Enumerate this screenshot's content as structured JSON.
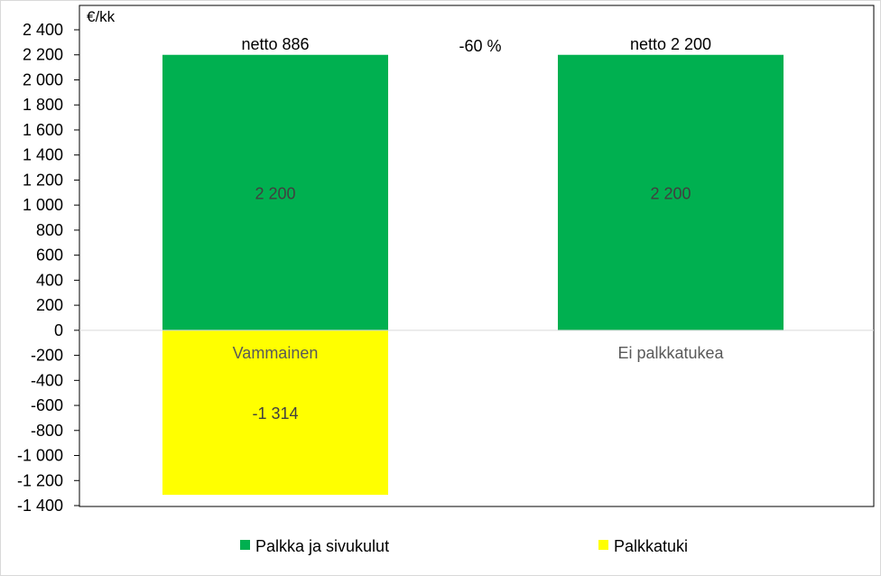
{
  "chart_data": {
    "type": "bar",
    "stacked": true,
    "unit_label": "€/kk",
    "categories": [
      "Vammainen",
      "Ei palkkatukea"
    ],
    "series": [
      {
        "name": "Palkka ja sivukulut",
        "values": [
          2200,
          2200
        ],
        "color": "#00b050",
        "value_labels": [
          "2 200",
          "2 200"
        ]
      },
      {
        "name": "Palkkatuki",
        "values": [
          -1314,
          0
        ],
        "color": "#ffff00",
        "value_labels": [
          "-1 314",
          ""
        ]
      }
    ],
    "top_labels": [
      "netto 886",
      "netto 2 200"
    ],
    "annotation": "-60 %",
    "ylim": [
      -1400,
      2400
    ],
    "yticks": [
      2400,
      2200,
      2000,
      1800,
      1600,
      1400,
      1200,
      1000,
      800,
      600,
      400,
      200,
      0,
      -200,
      -400,
      -600,
      -800,
      -1000,
      -1200,
      -1400
    ],
    "ytick_labels": [
      "2 400",
      "2 200",
      "2 000",
      "1 800",
      "1 600",
      "1 400",
      "1 200",
      "1 000",
      "800",
      "600",
      "400",
      "200",
      "0",
      "-200",
      "-400",
      "-600",
      "-800",
      "-1 000",
      "-1 200",
      "-1 400"
    ],
    "legend_position": "bottom",
    "grid": false
  }
}
